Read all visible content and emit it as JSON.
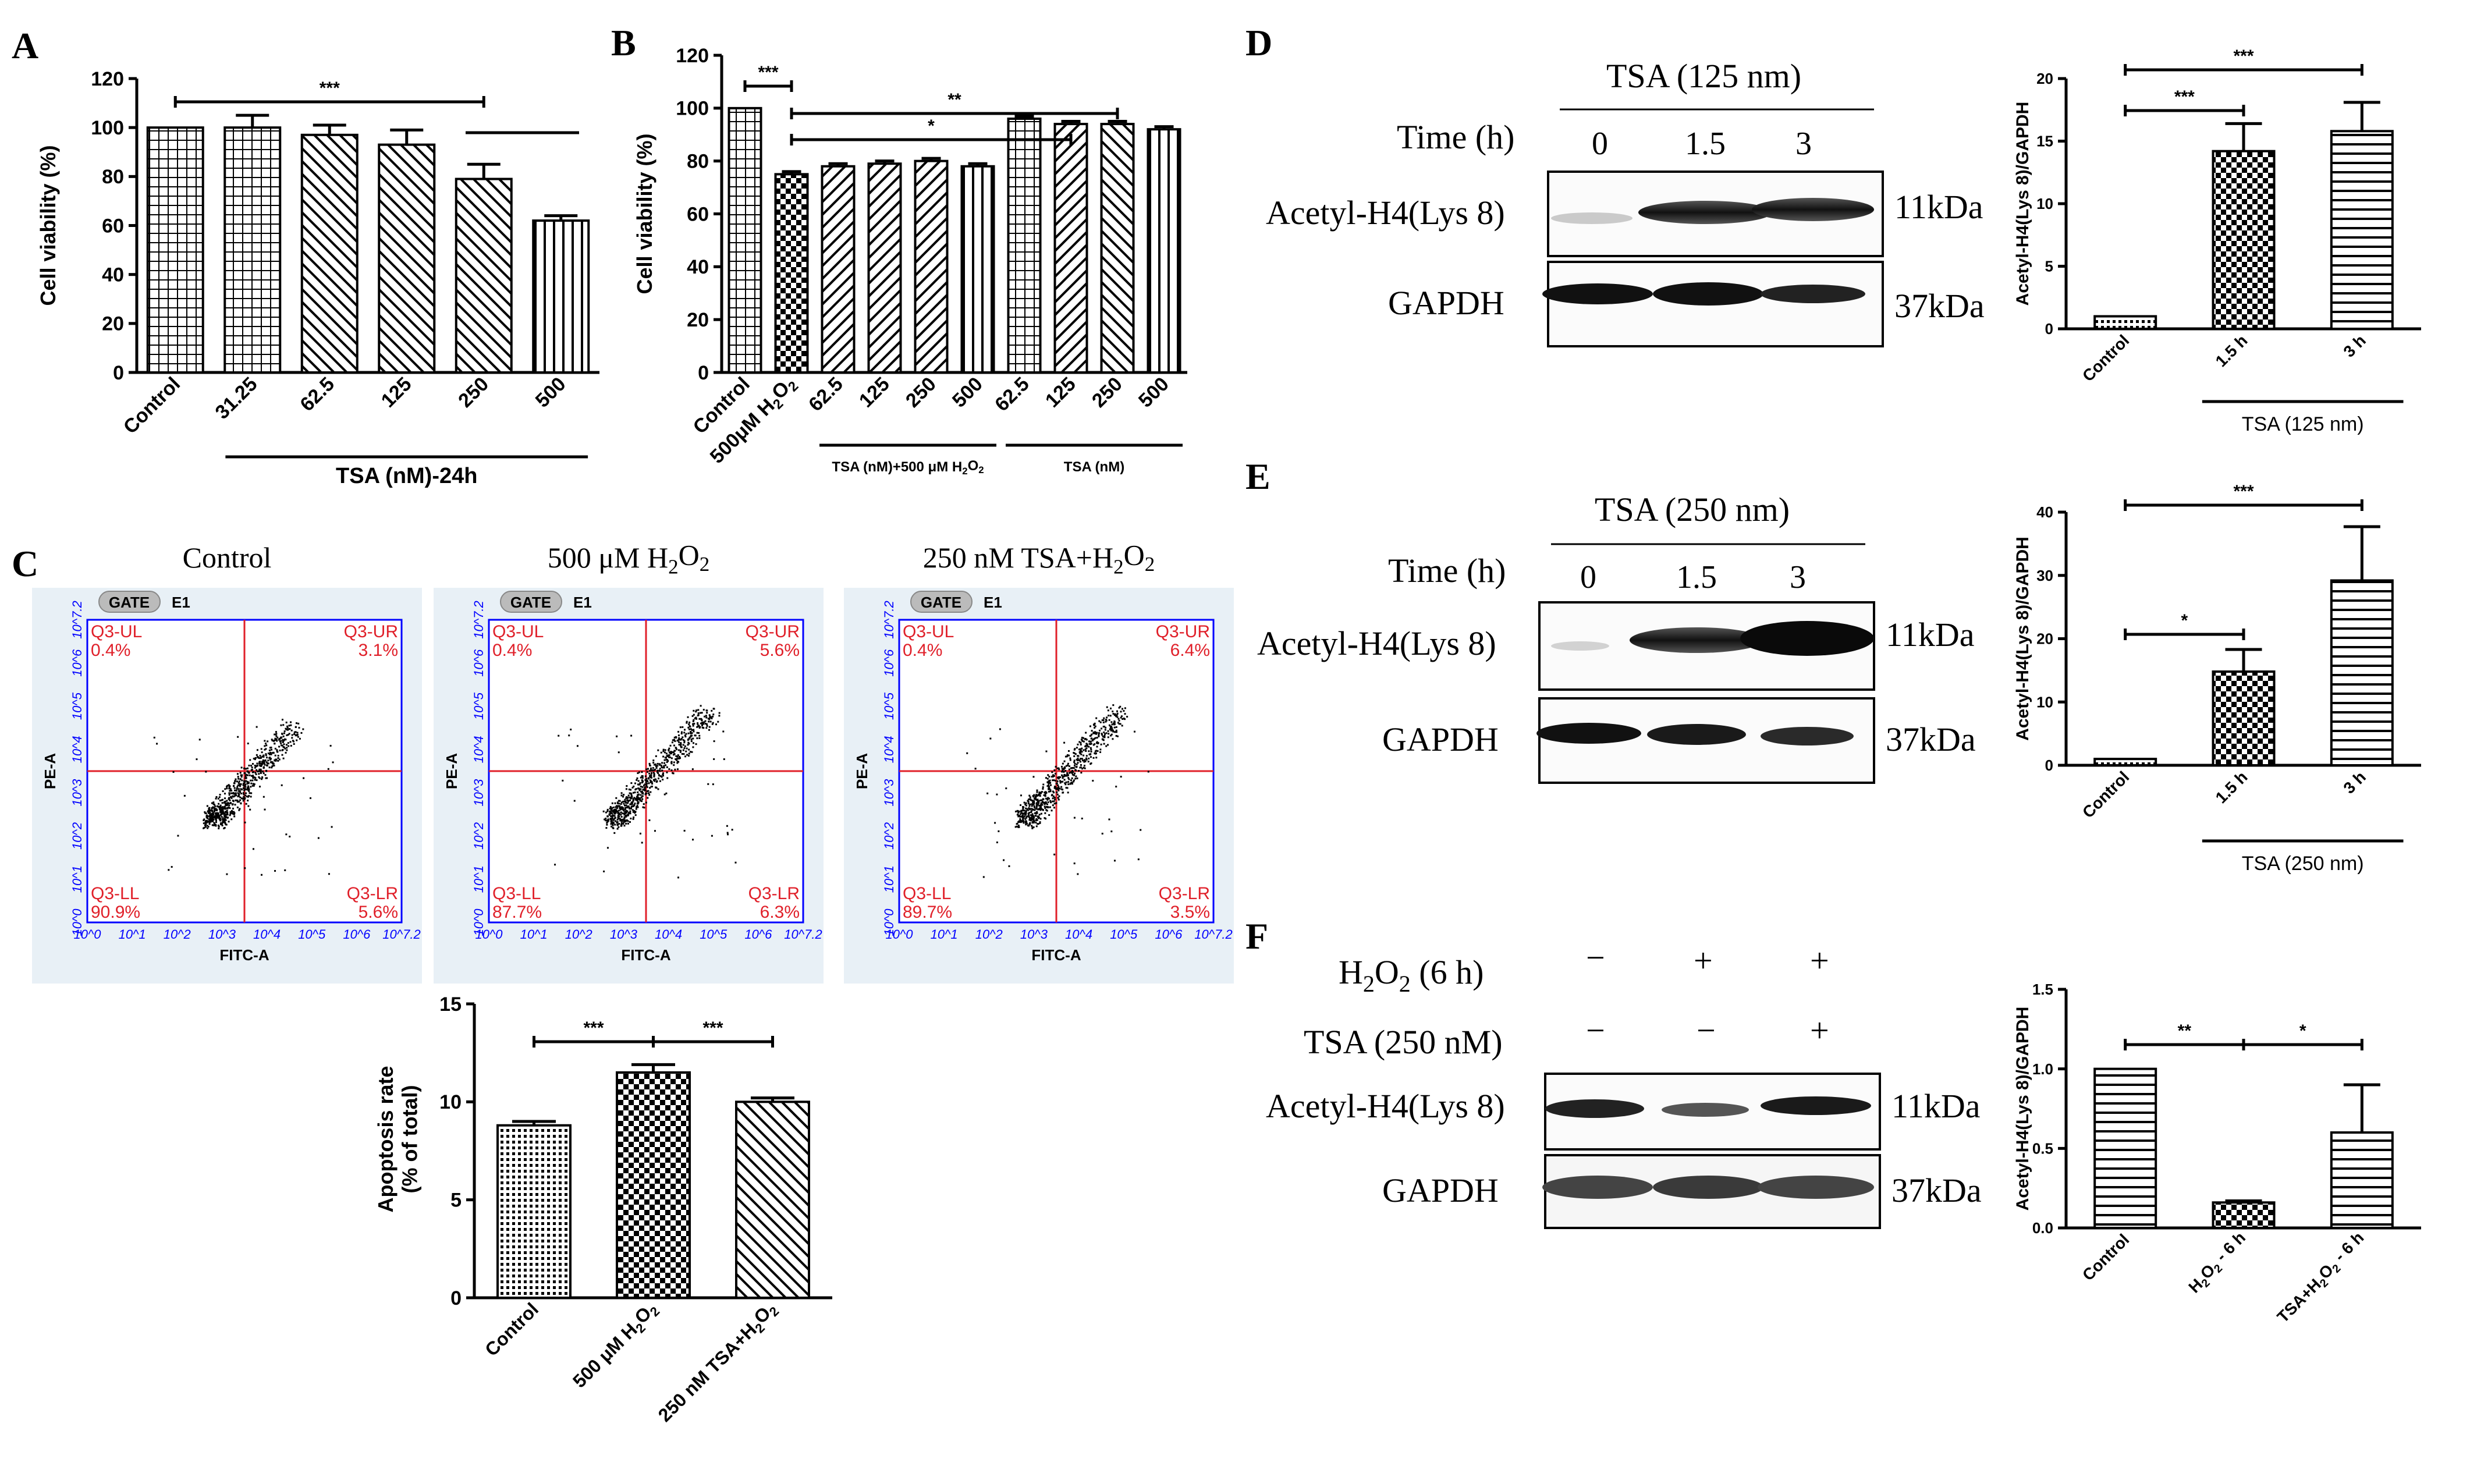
{
  "panels": {
    "A": "A",
    "B": "B",
    "C": "C",
    "D": "D",
    "E": "E",
    "F": "F"
  },
  "colors": {
    "ink": "#000000",
    "flow_quadrant": "#e0202a",
    "flow_axis": "#0000ff",
    "flow_bg": "#e8f0f6"
  },
  "chart_data": [
    {
      "id": "A",
      "type": "bar",
      "ylabel": "Cell viability (%)",
      "ylim": [
        0,
        120
      ],
      "yticks": [
        0,
        20,
        40,
        60,
        80,
        100,
        120
      ],
      "categories": [
        "Control",
        "31.25",
        "62.5",
        "125",
        "250",
        "500"
      ],
      "values": [
        100,
        100,
        97,
        93,
        79,
        62
      ],
      "errors": [
        0,
        5,
        4,
        6,
        6,
        2
      ],
      "patterns": [
        "grid",
        "grid",
        "hatch-back",
        "hatch-back",
        "hatch-back",
        "vlines"
      ],
      "group_label": "TSA (nM)-24h",
      "significance": [
        {
          "label": "***",
          "from": "Control",
          "to": "250"
        }
      ]
    },
    {
      "id": "B",
      "type": "bar",
      "ylabel": "Cell viability (%)",
      "ylim": [
        0,
        120
      ],
      "yticks": [
        0,
        20,
        40,
        60,
        80,
        100,
        120
      ],
      "categories": [
        "Control",
        "500μM H2O2",
        "62.5",
        "125",
        "250",
        "500",
        "62.5",
        "125",
        "250",
        "500"
      ],
      "values": [
        100,
        75,
        78,
        79,
        80,
        78,
        96,
        94,
        94,
        92
      ],
      "errors": [
        0,
        1,
        1,
        1,
        1,
        1,
        1,
        1,
        1,
        1
      ],
      "patterns": [
        "grid",
        "checker",
        "hatch-fwd",
        "hatch-fwd",
        "hatch-fwd",
        "vlines",
        "grid",
        "hatch-fwd",
        "hatch-back",
        "vlines"
      ],
      "group_labels": [
        {
          "label": "TSA  (nM)+500 μM H2O2",
          "from": 2,
          "to": 5
        },
        {
          "label": "TSA (nM)",
          "from": 6,
          "to": 9
        }
      ],
      "significance": [
        {
          "label": "***",
          "from": "Control",
          "to": "500μM H2O2"
        },
        {
          "label": "**",
          "from": "500μM H2O2",
          "to": "250"
        },
        {
          "label": "*",
          "from": "500μM H2O2",
          "to": "125"
        }
      ]
    },
    {
      "id": "C",
      "type": "bar",
      "ylabel": "Apoptosis rate (% of total)",
      "ylim": [
        0,
        15
      ],
      "yticks": [
        0,
        5,
        10,
        15
      ],
      "categories": [
        "Control",
        "500 μM H2O2",
        "250 nM TSA+H2O2"
      ],
      "values": [
        8.8,
        11.5,
        10.0
      ],
      "errors": [
        0.2,
        0.4,
        0.2
      ],
      "patterns": [
        "dots",
        "checker",
        "hatch-back"
      ],
      "significance": [
        {
          "label": "***",
          "from": "Control",
          "to": "500 μM H2O2"
        },
        {
          "label": "***",
          "from": "500 μM H2O2",
          "to": "250 nM TSA+H2O2"
        }
      ]
    },
    {
      "id": "D",
      "type": "bar",
      "ylabel": "Acetyl-H4(Lys 8)/GAPDH",
      "ylim": [
        0,
        20
      ],
      "yticks": [
        0,
        5,
        10,
        15,
        20
      ],
      "categories": [
        "Control",
        "1.5 h",
        "3 h"
      ],
      "values": [
        1,
        14.2,
        15.8
      ],
      "errors": [
        0,
        2.2,
        2.3
      ],
      "patterns": [
        "dots",
        "checker",
        "hlines"
      ],
      "group_label": "TSA (125 nm)",
      "significance": [
        {
          "label": "***",
          "from": "Control",
          "to": "1.5 h"
        },
        {
          "label": "***",
          "from": "Control",
          "to": "3 h"
        }
      ]
    },
    {
      "id": "E",
      "type": "bar",
      "ylabel": "Acetyl-H4(Lys 8)/GAPDH",
      "ylim": [
        0,
        40
      ],
      "yticks": [
        0,
        10,
        20,
        30,
        40
      ],
      "categories": [
        "Control",
        "1.5 h",
        "3 h"
      ],
      "values": [
        1,
        14.8,
        29.2
      ],
      "errors": [
        0,
        3.5,
        8.5
      ],
      "patterns": [
        "dots",
        "checker",
        "hlines"
      ],
      "group_label": "TSA (250 nm)",
      "significance": [
        {
          "label": "*",
          "from": "Control",
          "to": "1.5 h"
        },
        {
          "label": "***",
          "from": "Control",
          "to": "3 h"
        }
      ]
    },
    {
      "id": "F",
      "type": "bar",
      "ylabel": "Acetyl-H4(Lys 8)/GAPDH",
      "ylim": [
        0,
        1.5
      ],
      "yticks": [
        "0.0",
        "0.5",
        "1.0",
        "1.5"
      ],
      "categories": [
        "Control",
        "H2O2 - 6 h",
        "TSA+H2O2 - 6 h"
      ],
      "values": [
        1.0,
        0.16,
        0.6
      ],
      "errors": [
        0,
        0.01,
        0.3
      ],
      "patterns": [
        "hlines",
        "checker",
        "hlines"
      ],
      "significance": [
        {
          "label": "**",
          "from": "Control",
          "to": "H2O2 - 6 h"
        },
        {
          "label": "*",
          "from": "H2O2 - 6 h",
          "to": "TSA+H2O2 - 6 h"
        }
      ]
    }
  ],
  "flow": {
    "titles": [
      "Control",
      "500 μM H2O2",
      "250 nM TSA+H2O2"
    ],
    "gate": "GATE",
    "gate_id": "E1",
    "xaxis": "FITC-A",
    "yaxis": "PE-A",
    "quad_names": [
      "Q3-UL",
      "Q3-UR",
      "Q3-LL",
      "Q3-LR"
    ],
    "quad_values": [
      [
        "0.4%",
        "3.1%",
        "90.9%",
        "5.6%"
      ],
      [
        "0.4%",
        "5.6%",
        "87.7%",
        "6.3%"
      ],
      [
        "0.4%",
        "6.4%",
        "89.7%",
        "3.5%"
      ]
    ],
    "ticks": [
      "10^0",
      "10^1",
      "10^2",
      "10^3",
      "10^4",
      "10^5",
      "10^6",
      "10^7.2"
    ]
  },
  "blots": {
    "D": {
      "title": "TSA (125 nm)",
      "time_label": "Time (h)",
      "times": [
        "0",
        "1.5",
        "3"
      ],
      "rows": [
        "Acetyl-H4(Lys 8)",
        "GAPDH"
      ],
      "kda": [
        "11kDa",
        "37kDa"
      ]
    },
    "E": {
      "title": "TSA (250 nm)",
      "time_label": "Time (h)",
      "times": [
        "0",
        "1.5",
        "3"
      ],
      "rows": [
        "Acetyl-H4(Lys 8)",
        "GAPDH"
      ],
      "kda": [
        "11kDa",
        "37kDa"
      ]
    },
    "F": {
      "treat_rows": [
        "H2O2 (6 h)",
        "TSA (250 nM)"
      ],
      "treat_signs": [
        [
          "−",
          "+",
          "+"
        ],
        [
          "−",
          "−",
          "+"
        ]
      ],
      "rows": [
        "Acetyl-H4(Lys 8)",
        "GAPDH"
      ],
      "kda": [
        "11kDa",
        "37kDa"
      ]
    }
  }
}
